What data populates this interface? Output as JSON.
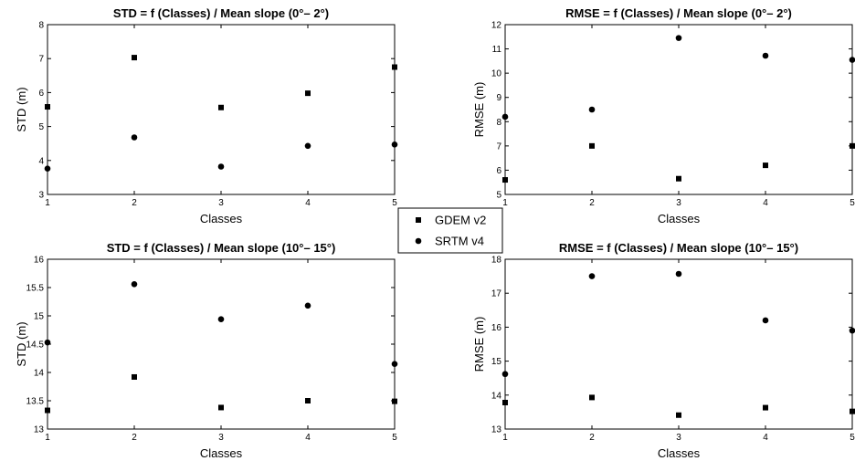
{
  "chart_data": [
    {
      "type": "scatter",
      "title": "STD = f (Classes) / Mean slope (0°– 2°)",
      "xlabel": "Classes",
      "ylabel": "STD (m)",
      "xlim": [
        1,
        5
      ],
      "ylim": [
        3,
        8
      ],
      "xticks": [
        "1",
        "2",
        "3",
        "4",
        "5"
      ],
      "yticks": [
        "3",
        "4",
        "5",
        "6",
        "7",
        "8"
      ],
      "series": [
        {
          "name": "GDEM v2",
          "marker": "square",
          "x": [
            1,
            2,
            3,
            4,
            5
          ],
          "y": [
            5.58,
            7.03,
            5.56,
            5.98,
            6.75
          ]
        },
        {
          "name": "SRTM v4",
          "marker": "circle",
          "x": [
            1,
            2,
            3,
            4,
            5
          ],
          "y": [
            3.76,
            4.68,
            3.82,
            4.43,
            4.47
          ]
        }
      ]
    },
    {
      "type": "scatter",
      "title": "RMSE = f (Classes) / Mean slope (0°– 2°)",
      "xlabel": "Classes",
      "ylabel": "RMSE (m)",
      "xlim": [
        1,
        5
      ],
      "ylim": [
        5,
        12
      ],
      "xticks": [
        "1",
        "2",
        "3",
        "4",
        "5"
      ],
      "yticks": [
        "5",
        "6",
        "7",
        "8",
        "9",
        "10",
        "11",
        "12"
      ],
      "series": [
        {
          "name": "GDEM v2",
          "marker": "square",
          "x": [
            1,
            2,
            3,
            4,
            5
          ],
          "y": [
            5.6,
            7.0,
            5.65,
            6.2,
            7.0
          ]
        },
        {
          "name": "SRTM v4",
          "marker": "circle",
          "x": [
            1,
            2,
            3,
            4,
            5
          ],
          "y": [
            8.2,
            8.5,
            11.45,
            10.72,
            10.55
          ]
        }
      ]
    },
    {
      "type": "scatter",
      "title": "STD = f (Classes) / Mean slope (10°– 15°)",
      "xlabel": "Classes",
      "ylabel": "STD (m)",
      "xlim": [
        1,
        5
      ],
      "ylim": [
        13,
        16
      ],
      "xticks": [
        "1",
        "2",
        "3",
        "4",
        "5"
      ],
      "yticks": [
        "13",
        "13.5",
        "14",
        "14.5",
        "15",
        "15.5",
        "16"
      ],
      "series": [
        {
          "name": "GDEM v2",
          "marker": "square",
          "x": [
            1,
            2,
            3,
            4,
            5
          ],
          "y": [
            13.33,
            13.92,
            13.38,
            13.5,
            13.49
          ]
        },
        {
          "name": "SRTM v4",
          "marker": "circle",
          "x": [
            1,
            2,
            3,
            4,
            5
          ],
          "y": [
            14.53,
            15.56,
            14.94,
            15.18,
            14.15
          ]
        }
      ]
    },
    {
      "type": "scatter",
      "title": "RMSE = f (Classes) / Mean slope (10°– 15°)",
      "xlabel": "Classes",
      "ylabel": "RMSE (m)",
      "xlim": [
        1,
        5
      ],
      "ylim": [
        13,
        18
      ],
      "xticks": [
        "1",
        "2",
        "3",
        "4",
        "5"
      ],
      "yticks": [
        "13",
        "14",
        "15",
        "16",
        "17",
        "18"
      ],
      "series": [
        {
          "name": "GDEM v2",
          "marker": "square",
          "x": [
            1,
            2,
            3,
            4,
            5
          ],
          "y": [
            13.78,
            13.93,
            13.41,
            13.63,
            13.52
          ]
        },
        {
          "name": "SRTM v4",
          "marker": "circle",
          "x": [
            1,
            2,
            3,
            4,
            5
          ],
          "y": [
            14.62,
            17.5,
            17.57,
            16.2,
            15.9
          ]
        }
      ]
    }
  ],
  "legend": {
    "items": [
      {
        "label": "GDEM v2",
        "marker": "square"
      },
      {
        "label": "SRTM v4",
        "marker": "circle"
      }
    ]
  },
  "colors": {
    "marker": "#000000",
    "axes": "#000000",
    "background": "#ffffff"
  }
}
